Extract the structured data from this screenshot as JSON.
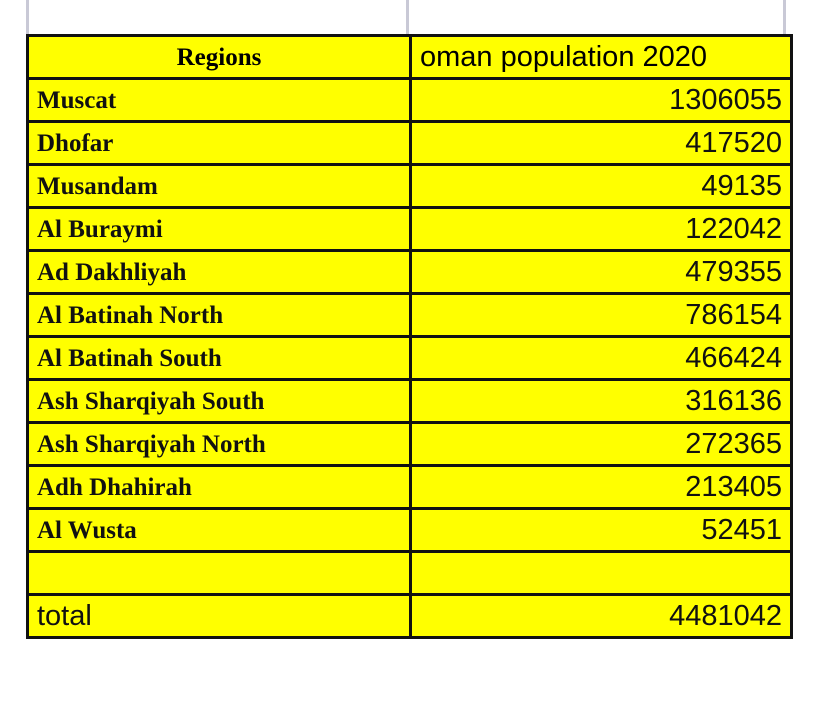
{
  "table": {
    "header": {
      "region": "Regions",
      "value": "oman population 2020"
    },
    "rows": [
      {
        "region": "Muscat",
        "value": "1306055"
      },
      {
        "region": "Dhofar",
        "value": "417520"
      },
      {
        "region": "Musandam",
        "value": "49135"
      },
      {
        "region": "Al Buraymi",
        "value": "122042"
      },
      {
        "region": "Ad Dakhliyah",
        "value": "479355"
      },
      {
        "region": "Al Batinah North",
        "value": "786154"
      },
      {
        "region": "Al Batinah South",
        "value": "466424"
      },
      {
        "region": "Ash Sharqiyah South",
        "value": "316136"
      },
      {
        "region": "Ash Sharqiyah North",
        "value": "272365"
      },
      {
        "region": "Adh Dhahirah",
        "value": "213405"
      },
      {
        "region": "Al Wusta",
        "value": "52451"
      }
    ],
    "total": {
      "label": "total",
      "value": "4481042"
    }
  },
  "colors": {
    "cell_fill": "#ffff00",
    "border": "#111111"
  }
}
